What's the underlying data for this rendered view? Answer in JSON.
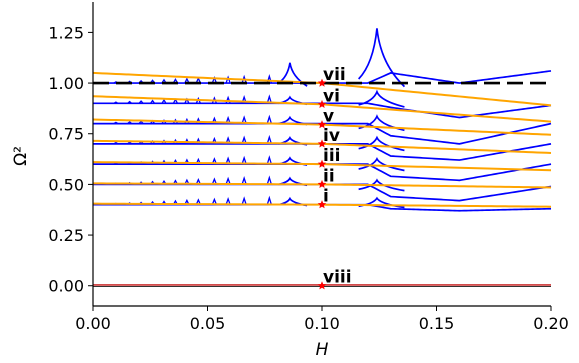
{
  "chart_data": {
    "type": "line",
    "title": "",
    "xlabel": "H",
    "ylabel": "Ω²",
    "xlim": [
      0.0,
      0.2
    ],
    "ylim": [
      -0.1,
      1.4
    ],
    "xticks": [
      {
        "value": 0.0,
        "label": "0.00"
      },
      {
        "value": 0.05,
        "label": "0.05"
      },
      {
        "value": 0.1,
        "label": "0.10"
      },
      {
        "value": 0.15,
        "label": "0.15"
      },
      {
        "value": 0.2,
        "label": "0.20"
      }
    ],
    "yticks": [
      {
        "value": 0.0,
        "label": "0.00"
      },
      {
        "value": 0.25,
        "label": "0.25"
      },
      {
        "value": 0.5,
        "label": "0.50"
      },
      {
        "value": 0.75,
        "label": "0.75"
      },
      {
        "value": 1.0,
        "label": "1.00"
      },
      {
        "value": 1.25,
        "label": "1.25"
      }
    ],
    "grid": false,
    "colors": {
      "blue": "#0000ff",
      "orange": "#ffa500",
      "dashed": "#000000",
      "baseline": "#cc3333",
      "marker": "#ff0000"
    },
    "orange_series": [
      {
        "x": [
          0,
          0.1,
          0.2
        ],
        "y": [
          1.05,
          1.0,
          0.89
        ]
      },
      {
        "x": [
          0,
          0.1,
          0.2
        ],
        "y": [
          0.935,
          0.895,
          0.81
        ]
      },
      {
        "x": [
          0,
          0.1,
          0.2
        ],
        "y": [
          0.82,
          0.795,
          0.745
        ]
      },
      {
        "x": [
          0,
          0.1,
          0.2
        ],
        "y": [
          0.715,
          0.7,
          0.655
        ]
      },
      {
        "x": [
          0,
          0.1,
          0.2
        ],
        "y": [
          0.61,
          0.6,
          0.57
        ]
      },
      {
        "x": [
          0,
          0.1,
          0.2
        ],
        "y": [
          0.505,
          0.5,
          0.485
        ]
      },
      {
        "x": [
          0,
          0.1,
          0.2
        ],
        "y": [
          0.405,
          0.4,
          0.39
        ]
      }
    ],
    "blue_series": [
      {
        "x": [
          0,
          0.088,
          0.098,
          0.12,
          0.13,
          0.16,
          0.2
        ],
        "y": [
          1.0,
          1.0,
          1.0,
          1.0,
          1.05,
          1.0,
          1.06
        ]
      },
      {
        "x": [
          0,
          0.088,
          0.098,
          0.12,
          0.13,
          0.16,
          0.2
        ],
        "y": [
          0.9,
          0.9,
          0.9,
          0.9,
          0.88,
          0.83,
          0.89
        ]
      },
      {
        "x": [
          0,
          0.088,
          0.098,
          0.12,
          0.13,
          0.16,
          0.2
        ],
        "y": [
          0.8,
          0.8,
          0.8,
          0.8,
          0.74,
          0.7,
          0.8
        ]
      },
      {
        "x": [
          0,
          0.088,
          0.098,
          0.12,
          0.13,
          0.16,
          0.2
        ],
        "y": [
          0.7,
          0.7,
          0.7,
          0.7,
          0.64,
          0.62,
          0.7
        ]
      },
      {
        "x": [
          0,
          0.088,
          0.098,
          0.12,
          0.13,
          0.16,
          0.2
        ],
        "y": [
          0.6,
          0.6,
          0.6,
          0.6,
          0.54,
          0.52,
          0.6
        ]
      },
      {
        "x": [
          0,
          0.088,
          0.098,
          0.12,
          0.13,
          0.16,
          0.2
        ],
        "y": [
          0.5,
          0.5,
          0.5,
          0.5,
          0.44,
          0.42,
          0.49
        ]
      },
      {
        "x": [
          0,
          0.088,
          0.098,
          0.12,
          0.13,
          0.16,
          0.2
        ],
        "y": [
          0.4,
          0.4,
          0.4,
          0.4,
          0.38,
          0.37,
          0.38
        ]
      }
    ],
    "dashed_line": {
      "y": 1.0
    },
    "baseline": {
      "y": 0.0
    },
    "markers": [
      {
        "x": 0.1,
        "y": 1.0,
        "label": "vii"
      },
      {
        "x": 0.1,
        "y": 0.895,
        "label": "vi"
      },
      {
        "x": 0.1,
        "y": 0.795,
        "label": "v"
      },
      {
        "x": 0.1,
        "y": 0.7,
        "label": "iv"
      },
      {
        "x": 0.1,
        "y": 0.6,
        "label": "iii"
      },
      {
        "x": 0.1,
        "y": 0.5,
        "label": "ii"
      },
      {
        "x": 0.1,
        "y": 0.4,
        "label": "i"
      },
      {
        "x": 0.1,
        "y": 0.0,
        "label": "viii"
      }
    ]
  }
}
